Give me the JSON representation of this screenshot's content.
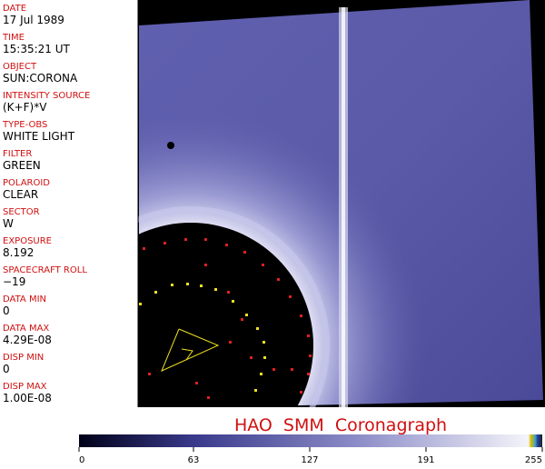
{
  "fields": [
    {
      "label": "DATE",
      "value": "17 Jul 1989"
    },
    {
      "label": "TIME",
      "value": "15:35:21 UT"
    },
    {
      "label": "OBJECT",
      "value": "SUN:CORONA"
    },
    {
      "label": "INTENSITY SOURCE",
      "value": "(K+F)*V"
    },
    {
      "label": "TYPE-OBS",
      "value": "WHITE LIGHT"
    },
    {
      "label": "FILTER",
      "value": "GREEN"
    },
    {
      "label": "POLAROID",
      "value": "CLEAR"
    },
    {
      "label": "SECTOR",
      "value": "W"
    },
    {
      "label": "EXPOSURE",
      "value": "8.192"
    },
    {
      "label": "SPACECRAFT ROLL",
      "value": "−19"
    },
    {
      "label": "DATA MIN",
      "value": "0"
    },
    {
      "label": "DATA MAX",
      "value": "4.29E-08"
    },
    {
      "label": "DISP MIN",
      "value": "0"
    },
    {
      "label": "DISP MAX",
      "value": "1.00E-08"
    }
  ],
  "title": "HAO  SMM  Coronagraph",
  "colorbar": {
    "range": [
      0,
      255
    ],
    "ticks": [
      0,
      63,
      127,
      191,
      255
    ]
  }
}
